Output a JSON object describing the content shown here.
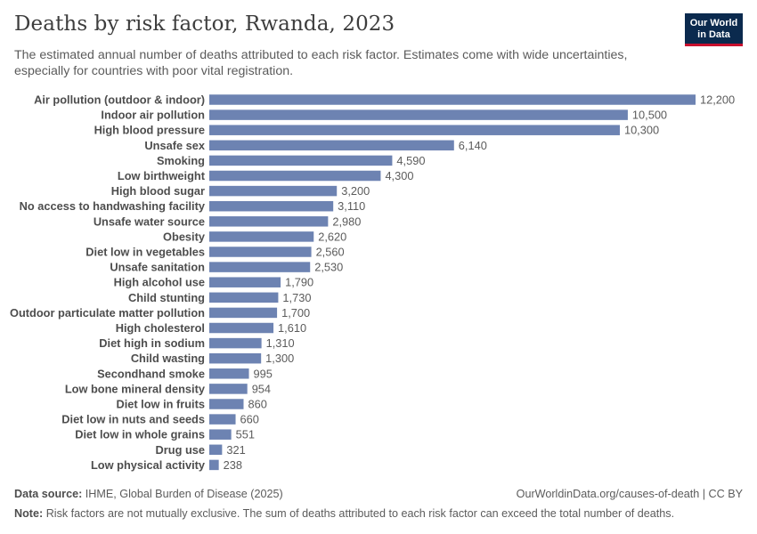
{
  "header": {
    "title": "Deaths by risk factor, Rwanda, 2023",
    "subtitle": "The estimated annual number of deaths attributed to each risk factor. Estimates come with wide uncertainties, especially for countries with poor vital registration.",
    "logo_line1": "Our World",
    "logo_line2": "in Data"
  },
  "colors": {
    "bar": "#6d83b2",
    "logo_bg": "#0b2a4e",
    "logo_accent": "#c8102e"
  },
  "chart_data": {
    "type": "bar",
    "orientation": "horizontal",
    "title": "Deaths by risk factor, Rwanda, 2023",
    "xlabel": "",
    "ylabel": "",
    "xlim": [
      0,
      12200
    ],
    "grid": false,
    "categories": [
      "Air pollution (outdoor & indoor)",
      "Indoor air pollution",
      "High blood pressure",
      "Unsafe sex",
      "Smoking",
      "Low birthweight",
      "High blood sugar",
      "No access to handwashing facility",
      "Unsafe water source",
      "Obesity",
      "Diet low in vegetables",
      "Unsafe sanitation",
      "High alcohol use",
      "Child stunting",
      "Outdoor particulate matter pollution",
      "High cholesterol",
      "Diet high in sodium",
      "Child wasting",
      "Secondhand smoke",
      "Low bone mineral density",
      "Diet low in fruits",
      "Diet low in nuts and seeds",
      "Diet low in whole grains",
      "Drug use",
      "Low physical activity"
    ],
    "values": [
      12200,
      10500,
      10300,
      6140,
      4590,
      4300,
      3200,
      3110,
      2980,
      2620,
      2560,
      2530,
      1790,
      1730,
      1700,
      1610,
      1310,
      1300,
      995,
      954,
      860,
      660,
      551,
      321,
      238
    ],
    "value_labels": [
      "12,200",
      "10,500",
      "10,300",
      "6,140",
      "4,590",
      "4,300",
      "3,200",
      "3,110",
      "2,980",
      "2,620",
      "2,560",
      "2,530",
      "1,790",
      "1,730",
      "1,700",
      "1,610",
      "1,310",
      "1,300",
      "995",
      "954",
      "860",
      "660",
      "551",
      "321",
      "238"
    ]
  },
  "footer": {
    "source_label": "Data source:",
    "source_text": "IHME, Global Burden of Disease (2025)",
    "url": "OurWorldinData.org/causes-of-death | CC BY",
    "note_label": "Note:",
    "note_text": "Risk factors are not mutually exclusive. The sum of deaths attributed to each risk factor can exceed the total number of deaths."
  }
}
